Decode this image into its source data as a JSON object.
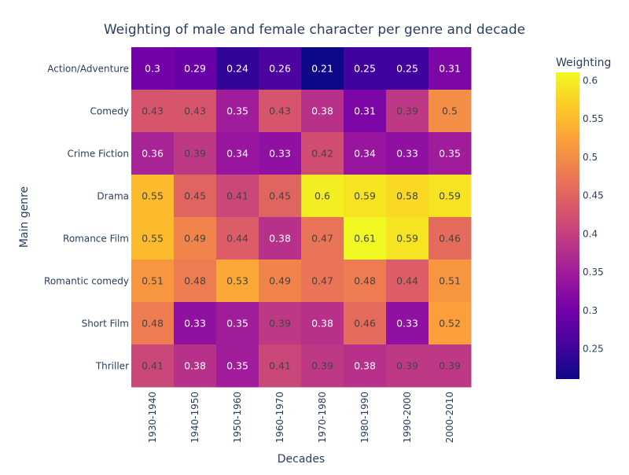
{
  "chart_data": {
    "type": "heatmap",
    "title": "Weighting of male and female character per genre and decade",
    "xlabel": "Decades",
    "ylabel": "Main genre",
    "x": [
      "1930-1940",
      "1940-1950",
      "1950-1960",
      "1960-1970",
      "1970-1980",
      "1980-1990",
      "1990-2000",
      "2000-2010"
    ],
    "y": [
      "Action/Adventure",
      "Comedy",
      "Crime Fiction",
      "Drama",
      "Romance Film",
      "Romantic comedy",
      "Short Film",
      "Thriller"
    ],
    "z": [
      [
        0.3,
        0.29,
        0.24,
        0.26,
        0.21,
        0.25,
        0.25,
        0.31
      ],
      [
        0.43,
        0.43,
        0.35,
        0.43,
        0.38,
        0.31,
        0.39,
        0.5
      ],
      [
        0.36,
        0.39,
        0.34,
        0.33,
        0.42,
        0.34,
        0.33,
        0.35
      ],
      [
        0.55,
        0.45,
        0.41,
        0.45,
        0.6,
        0.59,
        0.58,
        0.59
      ],
      [
        0.55,
        0.49,
        0.44,
        0.38,
        0.47,
        0.61,
        0.59,
        0.46
      ],
      [
        0.51,
        0.48,
        0.53,
        0.49,
        0.47,
        0.48,
        0.44,
        0.51
      ],
      [
        0.48,
        0.33,
        0.35,
        0.39,
        0.38,
        0.46,
        0.33,
        0.52
      ],
      [
        0.41,
        0.38,
        0.35,
        0.41,
        0.39,
        0.38,
        0.39,
        0.39
      ]
    ],
    "zmin": 0.21,
    "zmax": 0.61,
    "colorbar": {
      "title": "Weighting",
      "ticks": [
        "0.25",
        "0.3",
        "0.35",
        "0.4",
        "0.45",
        "0.5",
        "0.55",
        "0.6"
      ]
    },
    "colorscale": [
      "#0d0887",
      "#46039f",
      "#7201a8",
      "#9c179e",
      "#bd3786",
      "#d8576b",
      "#ed7953",
      "#fb9f3a",
      "#fdca26",
      "#f0f921"
    ],
    "legend": "colorbar-right"
  }
}
